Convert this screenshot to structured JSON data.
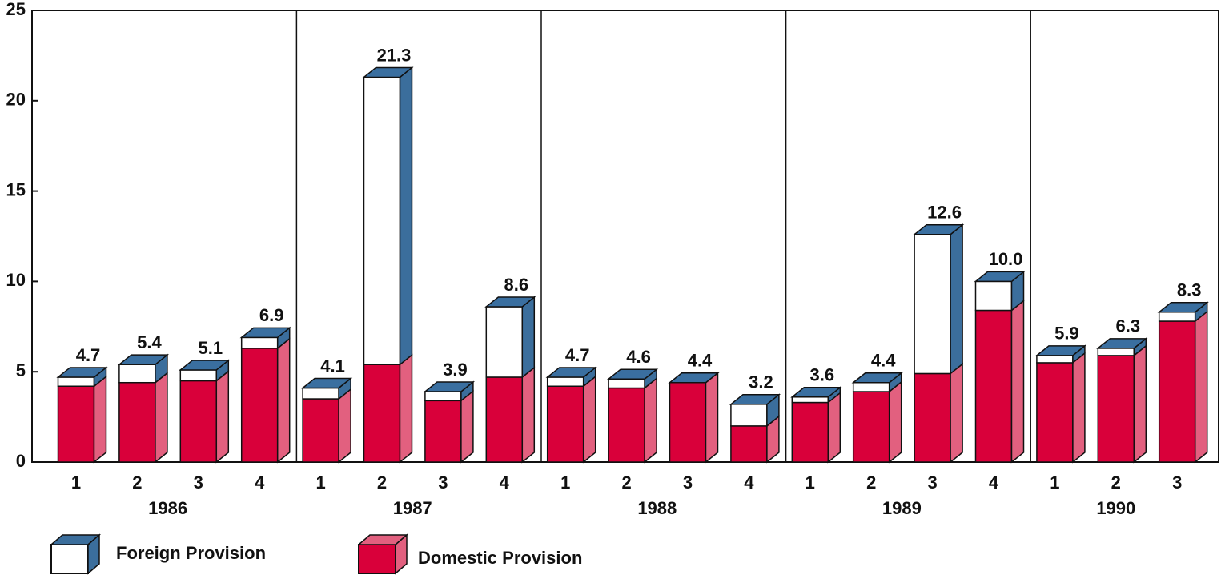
{
  "chart_data": {
    "type": "stacked-bar-3d",
    "groups": [
      {
        "name": "1986",
        "categories": [
          "1",
          "2",
          "3",
          "4"
        ]
      },
      {
        "name": "1987",
        "categories": [
          "1",
          "2",
          "3",
          "4"
        ]
      },
      {
        "name": "1988",
        "categories": [
          "1",
          "2",
          "3",
          "4"
        ]
      },
      {
        "name": "1989",
        "categories": [
          "1",
          "2",
          "3",
          "4"
        ]
      },
      {
        "name": "1990",
        "categories": [
          "1",
          "2",
          "3"
        ]
      }
    ],
    "series": [
      {
        "name": "Foreign Provision",
        "color": "#ffffff",
        "side_color": "#3b6e9c",
        "values": [
          0.5,
          1.0,
          0.6,
          0.6,
          0.6,
          15.9,
          0.5,
          3.9,
          0.5,
          0.5,
          0,
          1.2,
          0.3,
          0.5,
          7.7,
          1.6,
          0.4,
          0.4,
          0.5
        ]
      },
      {
        "name": "Domestic Provision",
        "color": "#d9003a",
        "side_color": "#e2607f",
        "values": [
          4.2,
          4.4,
          4.5,
          6.3,
          3.5,
          5.4,
          3.4,
          4.7,
          4.2,
          4.1,
          4.4,
          2.0,
          3.3,
          3.9,
          4.9,
          8.4,
          5.5,
          5.9,
          7.8
        ]
      }
    ],
    "totals": {
      "values": [
        4.7,
        5.4,
        5.1,
        6.9,
        4.1,
        21.3,
        3.9,
        8.6,
        4.7,
        4.6,
        4.4,
        3.2,
        3.6,
        4.4,
        12.6,
        10.0,
        5.9,
        6.3,
        8.3
      ],
      "value_labels": [
        "4.7",
        "5.4",
        "5.1",
        "6.9",
        "4.1",
        "21.3",
        "3.9",
        "8.6",
        "4.7",
        "4.6",
        "4.4",
        "3.2",
        "3.6",
        "4.4",
        "12.6",
        "10.0",
        "5.9",
        "6.3",
        "8.3"
      ],
      "color": "#3a6fa0"
    },
    "ylim": [
      0,
      25
    ],
    "yticks": [
      0,
      5,
      10,
      15,
      20,
      25
    ]
  }
}
